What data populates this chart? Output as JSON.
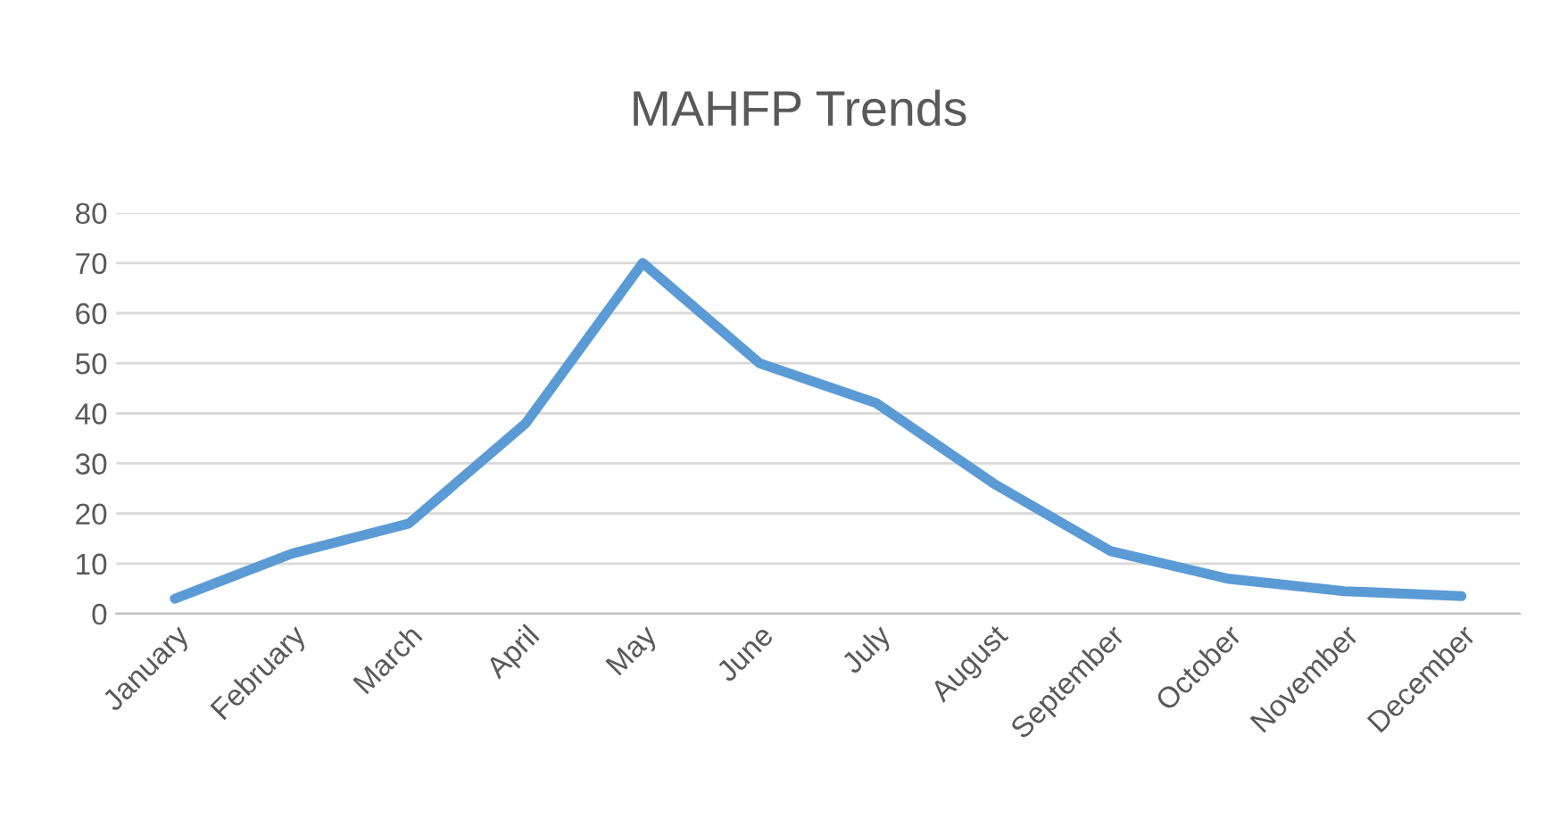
{
  "chart_data": {
    "type": "line",
    "title": "MAHFP Trends",
    "categories": [
      "January",
      "February",
      "March",
      "April",
      "May",
      "June",
      "July",
      "August",
      "September",
      "October",
      "November",
      "December"
    ],
    "series": [
      {
        "color": "#5b9bd5",
        "values": [
          3,
          12,
          18,
          38,
          70,
          50,
          42,
          26,
          12.5,
          7,
          4.5,
          3.5
        ]
      }
    ],
    "ylim": [
      0,
      80
    ],
    "yticks": [
      0,
      10,
      20,
      30,
      40,
      50,
      60,
      70,
      80
    ],
    "grid": "y",
    "marker": "none",
    "line_style": "solid"
  }
}
